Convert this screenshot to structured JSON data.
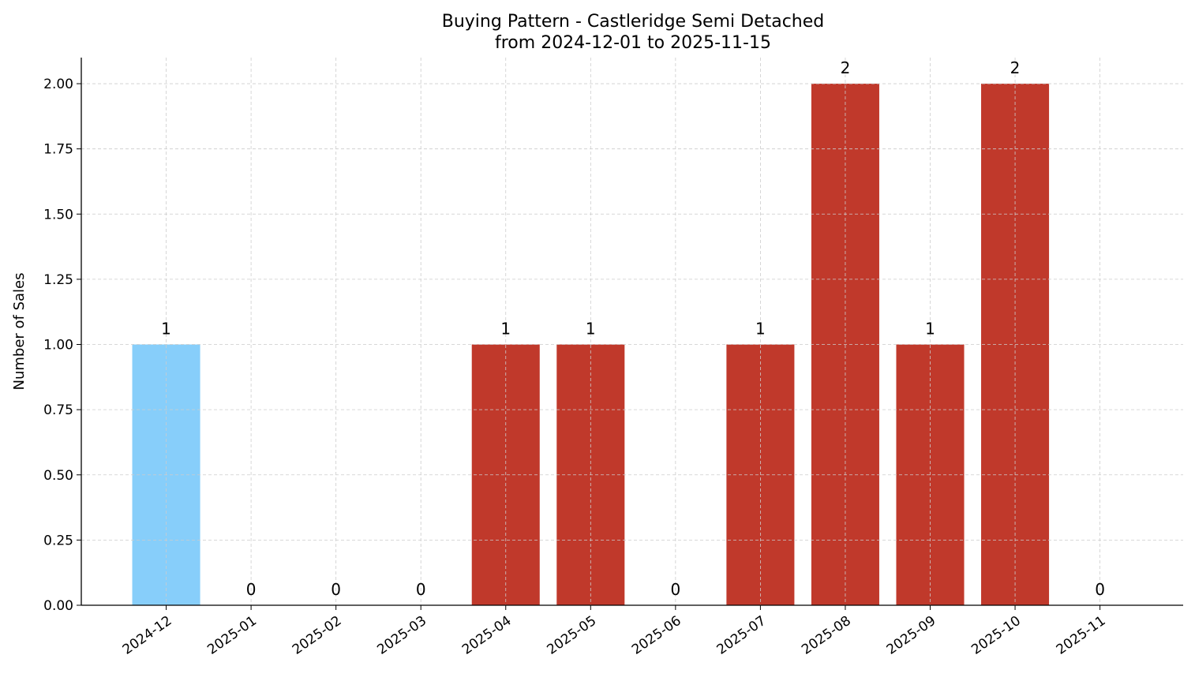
{
  "chart_data": {
    "type": "bar",
    "title": "Buying Pattern - Castleridge Semi Detached",
    "subtitle": "from 2024-12-01 to 2025-11-15",
    "xlabel": "",
    "ylabel": "Number of Sales",
    "categories": [
      "2024-12",
      "2025-01",
      "2025-02",
      "2025-03",
      "2025-04",
      "2025-05",
      "2025-06",
      "2025-07",
      "2025-08",
      "2025-09",
      "2025-10",
      "2025-11"
    ],
    "values": [
      1,
      0,
      0,
      0,
      1,
      1,
      0,
      1,
      2,
      1,
      2,
      0
    ],
    "data_labels": [
      "1",
      "0",
      "0",
      "0",
      "1",
      "1",
      "0",
      "1",
      "2",
      "1",
      "2",
      "0"
    ],
    "bar_colors": [
      "#87CEFA",
      "#C0392B",
      "#C0392B",
      "#C0392B",
      "#C0392B",
      "#C0392B",
      "#C0392B",
      "#C0392B",
      "#C0392B",
      "#C0392B",
      "#C0392B",
      "#C0392B"
    ],
    "ylim": [
      0,
      2.1
    ],
    "yticks": [
      "0.00",
      "0.25",
      "0.50",
      "0.75",
      "1.00",
      "1.25",
      "1.50",
      "1.75",
      "2.00"
    ],
    "grid": true,
    "legend": "none"
  }
}
